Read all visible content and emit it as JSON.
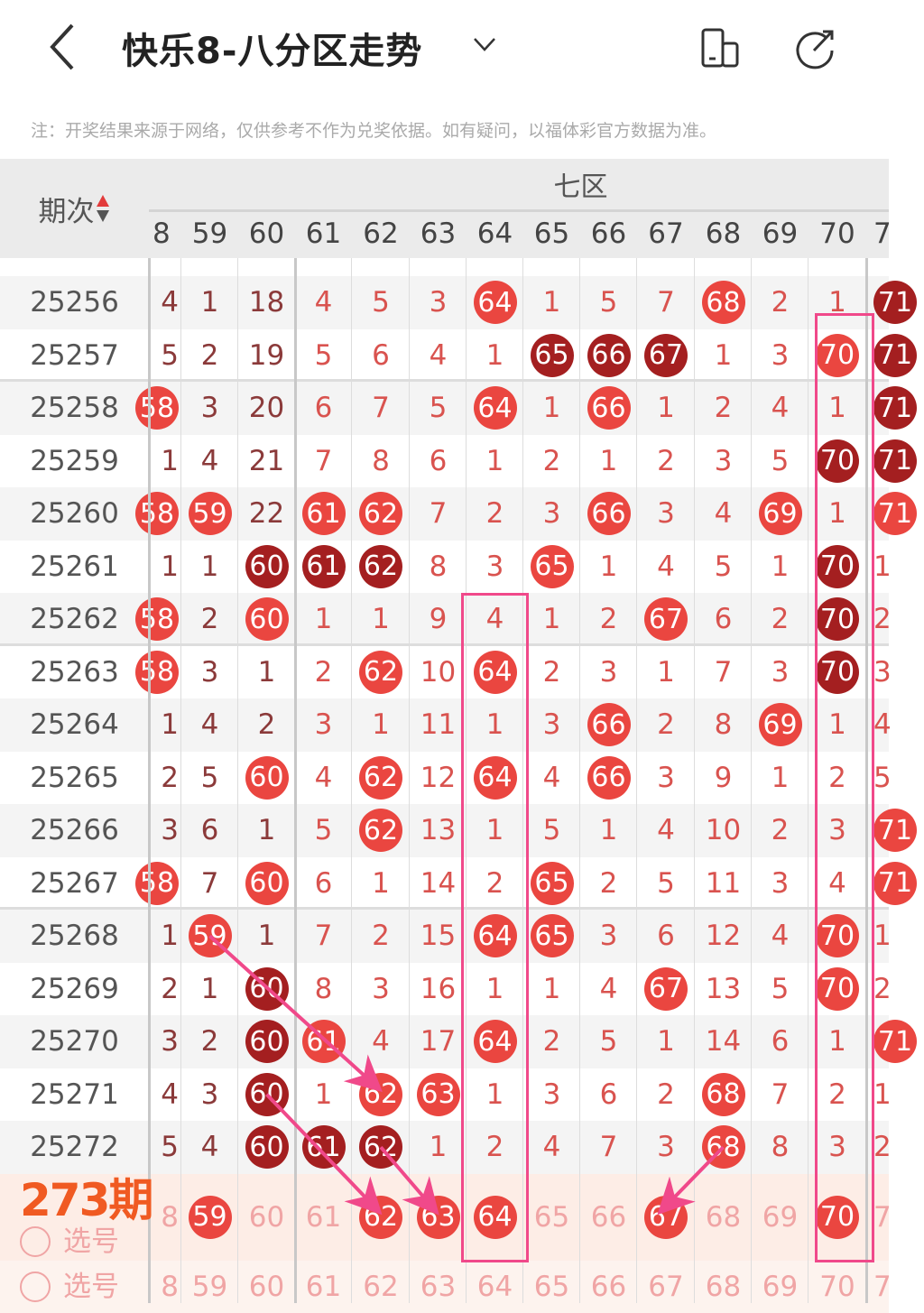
{
  "header": {
    "title": "快乐8-八分区走势",
    "back_icon": "chevron-left-icon",
    "dropdown_icon": "chevron-down-icon",
    "layout_icon": "device-rotate-icon",
    "share_icon": "share-icon"
  },
  "note": "注：开奖结果来源于网络，仅供参考不作为兑奖依据。如有疑问，以福体彩官方数据为准。",
  "table": {
    "period_header": "期次",
    "zone_label": "七区",
    "columns": [
      "8",
      "59",
      "60",
      "61",
      "62",
      "63",
      "64",
      "65",
      "66",
      "67",
      "68",
      "69",
      "70",
      "7"
    ],
    "rows": [
      {
        "period": "25256",
        "cells": [
          "4",
          "1",
          "18",
          "4",
          "5",
          "3",
          "B64",
          "1",
          "5",
          "7",
          "B68",
          "2",
          "1",
          "D71"
        ]
      },
      {
        "period": "25257",
        "cells": [
          "5",
          "2",
          "19",
          "5",
          "6",
          "4",
          "1",
          "D65",
          "D66",
          "D67",
          "1",
          "3",
          "B70",
          "D71"
        ]
      },
      {
        "period": "25258",
        "cells": [
          "B58",
          "3",
          "20",
          "6",
          "7",
          "5",
          "B64",
          "1",
          "B66",
          "1",
          "2",
          "4",
          "1",
          "D71"
        ]
      },
      {
        "period": "25259",
        "cells": [
          "1",
          "4",
          "21",
          "7",
          "8",
          "6",
          "1",
          "2",
          "1",
          "2",
          "3",
          "5",
          "D70",
          "D71"
        ]
      },
      {
        "period": "25260",
        "cells": [
          "B58",
          "B59",
          "22",
          "B61",
          "B62",
          "7",
          "2",
          "3",
          "B66",
          "3",
          "4",
          "B69",
          "1",
          "B71"
        ]
      },
      {
        "period": "25261",
        "cells": [
          "1",
          "1",
          "D60",
          "D61",
          "D62",
          "8",
          "3",
          "B65",
          "1",
          "4",
          "5",
          "1",
          "D70",
          "1"
        ]
      },
      {
        "period": "25262",
        "cells": [
          "B58",
          "2",
          "B60",
          "1",
          "1",
          "9",
          "4",
          "1",
          "2",
          "B67",
          "6",
          "2",
          "D70",
          "2"
        ]
      },
      {
        "period": "25263",
        "cells": [
          "B58",
          "3",
          "1",
          "2",
          "B62",
          "10",
          "B64",
          "2",
          "3",
          "1",
          "7",
          "3",
          "D70",
          "3"
        ]
      },
      {
        "period": "25264",
        "cells": [
          "1",
          "4",
          "2",
          "3",
          "1",
          "11",
          "1",
          "3",
          "B66",
          "2",
          "8",
          "B69",
          "1",
          "4"
        ]
      },
      {
        "period": "25265",
        "cells": [
          "2",
          "5",
          "B60",
          "4",
          "B62",
          "12",
          "B64",
          "4",
          "B66",
          "3",
          "9",
          "1",
          "2",
          "5"
        ]
      },
      {
        "period": "25266",
        "cells": [
          "3",
          "6",
          "1",
          "5",
          "B62",
          "13",
          "1",
          "5",
          "1",
          "4",
          "10",
          "2",
          "3",
          "B71"
        ]
      },
      {
        "period": "25267",
        "cells": [
          "B58",
          "7",
          "B60",
          "6",
          "1",
          "14",
          "2",
          "B65",
          "2",
          "5",
          "11",
          "3",
          "4",
          "B71"
        ]
      },
      {
        "period": "25268",
        "cells": [
          "1",
          "B59",
          "1",
          "7",
          "2",
          "15",
          "B64",
          "B65",
          "3",
          "6",
          "12",
          "4",
          "B70",
          "1"
        ]
      },
      {
        "period": "25269",
        "cells": [
          "2",
          "1",
          "D60",
          "8",
          "3",
          "16",
          "1",
          "1",
          "4",
          "B67",
          "13",
          "5",
          "B70",
          "2"
        ]
      },
      {
        "period": "25270",
        "cells": [
          "3",
          "2",
          "D60",
          "B61",
          "4",
          "17",
          "B64",
          "2",
          "5",
          "1",
          "14",
          "6",
          "1",
          "B71"
        ]
      },
      {
        "period": "25271",
        "cells": [
          "4",
          "3",
          "D60",
          "1",
          "B62",
          "B63",
          "1",
          "3",
          "6",
          "2",
          "B68",
          "7",
          "2",
          "1"
        ]
      },
      {
        "period": "25272",
        "cells": [
          "5",
          "4",
          "D60",
          "D61",
          "D62",
          "1",
          "2",
          "4",
          "7",
          "3",
          "B68",
          "8",
          "3",
          "2"
        ]
      }
    ],
    "predict_row": {
      "label": "选号",
      "overlay": "273期",
      "cells": [
        "8",
        "B59",
        "60",
        "61",
        "B62",
        "B63",
        "B64",
        "65",
        "66",
        "B67",
        "68",
        "69",
        "B70",
        "7"
      ]
    },
    "select_row": {
      "label": "选号",
      "cells": [
        "8",
        "59",
        "60",
        "61",
        "62",
        "63",
        "64",
        "65",
        "66",
        "67",
        "68",
        "69",
        "70",
        "7"
      ]
    }
  },
  "colors": {
    "ball": "#ea4640",
    "ball_dark": "#a41f20",
    "highlight_box": "#f0498a",
    "overlay_text": "#f05a22"
  }
}
